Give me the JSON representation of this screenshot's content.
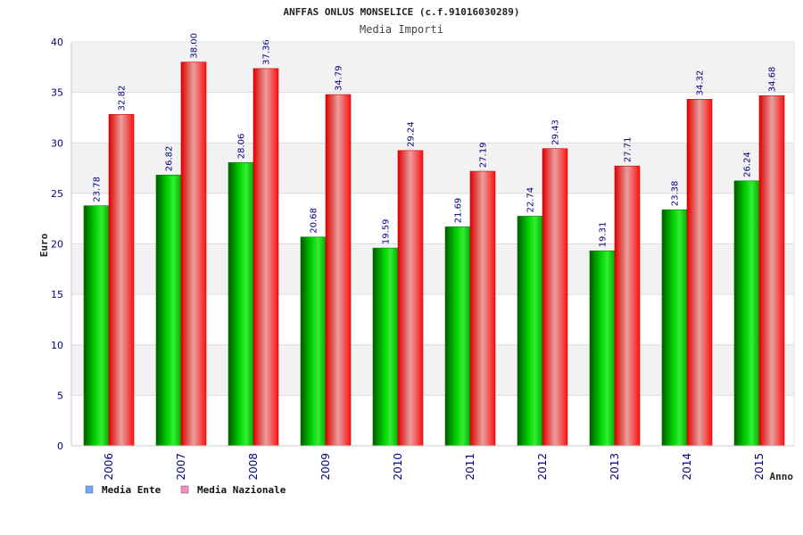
{
  "chart_data": {
    "type": "bar",
    "title": "ANFFAS ONLUS MONSELICE (c.f.91016030289)",
    "subtitle": "Media Importi",
    "xlabel": "Anno",
    "ylabel": "Euro",
    "ylim": [
      0,
      40
    ],
    "yticks": [
      "0",
      "5",
      "10",
      "15",
      "20",
      "25",
      "30",
      "35",
      "40"
    ],
    "grid": true,
    "legend_position": "bottom-left",
    "categories": [
      "2006",
      "2007",
      "2008",
      "2009",
      "2010",
      "2011",
      "2012",
      "2013",
      "2014",
      "2015"
    ],
    "series": [
      {
        "name": "Media Ente",
        "values": [
          23.78,
          26.82,
          28.06,
          20.68,
          19.59,
          21.69,
          22.74,
          19.31,
          23.38,
          26.24
        ],
        "labels": [
          "23.78",
          "26.82",
          "28.06",
          "20.68",
          "19.59",
          "21.69",
          "22.74",
          "19.31",
          "23.38",
          "26.24"
        ],
        "color": "#00c000",
        "legend_color": "#6fa8ff"
      },
      {
        "name": "Media Nazionale",
        "values": [
          32.82,
          38.0,
          37.36,
          34.79,
          29.24,
          27.19,
          29.43,
          27.71,
          34.32,
          34.68
        ],
        "labels": [
          "32.82",
          "38.00",
          "37.36",
          "34.79",
          "29.24",
          "27.19",
          "29.43",
          "27.71",
          "34.32",
          "34.68"
        ],
        "color": "#ff0000",
        "legend_color": "#ff88c8"
      }
    ]
  }
}
